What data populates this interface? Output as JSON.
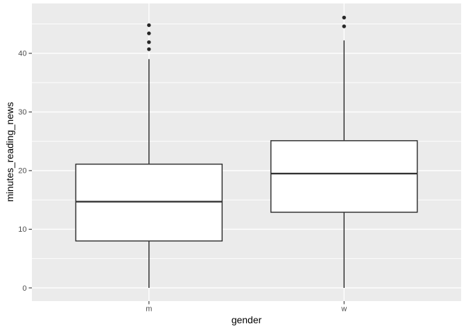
{
  "chart_data": {
    "type": "boxplot",
    "title": "",
    "xlabel": "gender",
    "ylabel": "minutes_reading_news",
    "categories": [
      "m",
      "w"
    ],
    "y_tick_labels": [
      "0",
      "10",
      "20",
      "30",
      "40"
    ],
    "y_major_values": [
      0,
      10,
      20,
      30,
      40
    ],
    "y_minor_values": [
      5,
      15,
      25,
      35,
      45
    ],
    "ylim": [
      -2.25,
      48.5
    ],
    "legend": "none",
    "grid": "major-and-minor",
    "series": [
      {
        "category": "m",
        "lower_whisker": 0,
        "q1": 8,
        "median": 14.7,
        "q3": 21.1,
        "upper_whisker": 39,
        "outliers": [
          40.7,
          41.9,
          43.4,
          44.8
        ]
      },
      {
        "category": "w",
        "lower_whisker": 0,
        "q1": 12.9,
        "median": 19.5,
        "q3": 25.1,
        "upper_whisker": 42.2,
        "outliers": [
          44.6,
          46.1
        ]
      }
    ],
    "style": {
      "plot_background": "#ffffff",
      "panel_background": "#ebebeb",
      "grid_color": "#ffffff",
      "box_fill": "#ffffff",
      "box_stroke": "#333333",
      "outlier_color": "#262626",
      "tick_color": "#333333",
      "tick_label_color": "#4d4d4d",
      "axis_title_color": "#000000"
    }
  }
}
